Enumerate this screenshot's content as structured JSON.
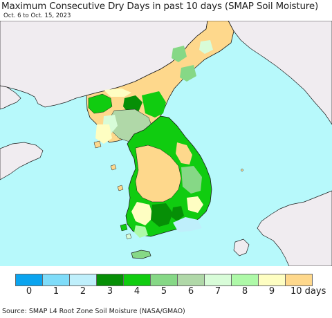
{
  "title": "Maximum Consecutive Dry Days in past 10 days (SMAP Soil Moisture)",
  "subtitle": "Oct. 6 to Oct. 15, 2023",
  "source": "Source: SMAP L4 Root Zone Soil Moisture (NASA/GMAO)",
  "colors": {
    "ocean": "#b7f9fb",
    "land_other": "#f0ecf0",
    "boundary": "#1a1a1a"
  },
  "legend": {
    "unit": "10 days",
    "labels": [
      "0",
      "1",
      "2",
      "3",
      "4",
      "5",
      "6",
      "7",
      "8",
      "9"
    ],
    "colors": [
      "#0aa4ef",
      "#7fdcf9",
      "#bfeffb",
      "#068f06",
      "#10cc10",
      "#86d886",
      "#b0d8a8",
      "#d8fcd8",
      "#aef9a8",
      "#fefec2",
      "#fed88c"
    ]
  }
}
